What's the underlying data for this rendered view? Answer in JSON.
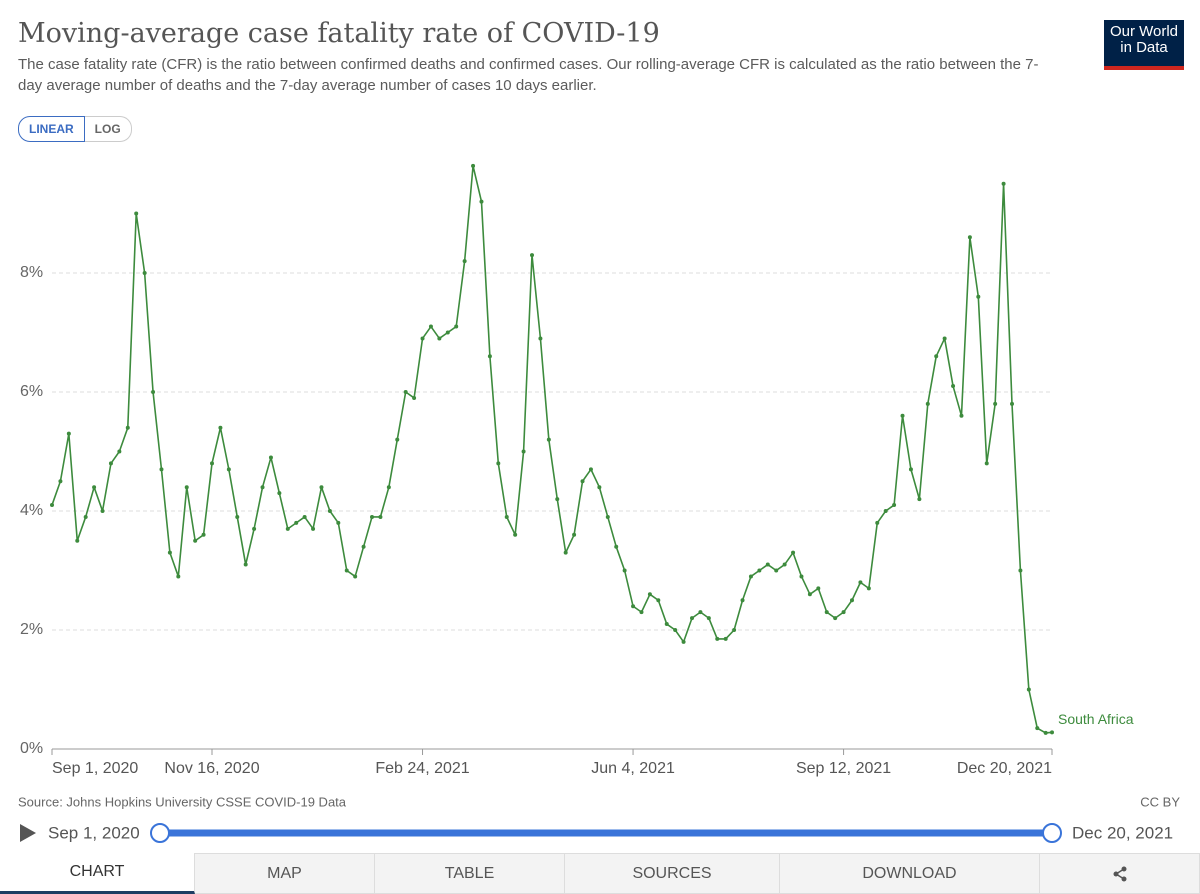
{
  "chart_data": {
    "type": "line",
    "title": "Moving-average case fatality rate of COVID-19",
    "subtitle": "The case fatality rate (CFR) is the ratio between confirmed deaths and confirmed cases. Our rolling-average CFR is calculated as the ratio between the 7-day average number of deaths and the 7-day average number of cases 10 days earlier.",
    "logo": [
      "Our World",
      "in Data"
    ],
    "scale_buttons": [
      "LINEAR",
      "LOG"
    ],
    "source": "Source: Johns Hopkins University CSSE COVID-19 Data",
    "license": "CC BY",
    "timeline": {
      "start": "Sep 1, 2020",
      "end": "Dec 20, 2021"
    },
    "tabs": [
      "CHART",
      "MAP",
      "TABLE",
      "SOURCES",
      "DOWNLOAD"
    ],
    "x": [
      "2020-09-01",
      "2020-09-05",
      "2020-09-09",
      "2020-09-13",
      "2020-09-17",
      "2020-09-21",
      "2020-09-25",
      "2020-09-29",
      "2020-10-03",
      "2020-10-07",
      "2020-10-11",
      "2020-10-15",
      "2020-10-19",
      "2020-10-23",
      "2020-10-27",
      "2020-10-31",
      "2020-11-04",
      "2020-11-08",
      "2020-11-12",
      "2020-11-16",
      "2020-11-20",
      "2020-11-24",
      "2020-11-28",
      "2020-12-02",
      "2020-12-06",
      "2020-12-10",
      "2020-12-14",
      "2020-12-18",
      "2020-12-22",
      "2020-12-26",
      "2020-12-30",
      "2021-01-03",
      "2021-01-07",
      "2021-01-11",
      "2021-01-15",
      "2021-01-19",
      "2021-01-23",
      "2021-01-27",
      "2021-01-31",
      "2021-02-04",
      "2021-02-08",
      "2021-02-12",
      "2021-02-16",
      "2021-02-20",
      "2021-02-24",
      "2021-02-28",
      "2021-03-04",
      "2021-03-08",
      "2021-03-12",
      "2021-03-16",
      "2021-03-20",
      "2021-03-24",
      "2021-03-28",
      "2021-04-01",
      "2021-04-05",
      "2021-04-09",
      "2021-04-13",
      "2021-04-17",
      "2021-04-21",
      "2021-04-25",
      "2021-04-29",
      "2021-05-03",
      "2021-05-07",
      "2021-05-11",
      "2021-05-15",
      "2021-05-19",
      "2021-05-23",
      "2021-05-27",
      "2021-05-31",
      "2021-06-04",
      "2021-06-08",
      "2021-06-12",
      "2021-06-16",
      "2021-06-20",
      "2021-06-24",
      "2021-06-28",
      "2021-07-02",
      "2021-07-06",
      "2021-07-10",
      "2021-07-14",
      "2021-07-18",
      "2021-07-22",
      "2021-07-26",
      "2021-07-30",
      "2021-08-03",
      "2021-08-07",
      "2021-08-11",
      "2021-08-15",
      "2021-08-19",
      "2021-08-23",
      "2021-08-27",
      "2021-08-31",
      "2021-09-04",
      "2021-09-08",
      "2021-09-12",
      "2021-09-16",
      "2021-09-20",
      "2021-09-24",
      "2021-09-28",
      "2021-10-02",
      "2021-10-06",
      "2021-10-10",
      "2021-10-14",
      "2021-10-18",
      "2021-10-22",
      "2021-10-26",
      "2021-10-30",
      "2021-11-03",
      "2021-11-07",
      "2021-11-11",
      "2021-11-15",
      "2021-11-19",
      "2021-11-23",
      "2021-11-27",
      "2021-12-01",
      "2021-12-05",
      "2021-12-09",
      "2021-12-13",
      "2021-12-17",
      "2021-12-20"
    ],
    "series": [
      {
        "name": "South Africa",
        "color": "#3d8b3d",
        "values": [
          4.1,
          4.5,
          5.3,
          3.5,
          3.9,
          4.4,
          4.0,
          4.8,
          5.0,
          5.4,
          9.0,
          8.0,
          6.0,
          4.7,
          3.3,
          2.9,
          4.4,
          3.5,
          3.6,
          4.8,
          5.4,
          4.7,
          3.9,
          3.1,
          3.7,
          4.4,
          4.9,
          4.3,
          3.7,
          3.8,
          3.9,
          3.7,
          4.4,
          4.0,
          3.8,
          3.0,
          2.9,
          3.4,
          3.9,
          3.9,
          4.4,
          5.2,
          6.0,
          5.9,
          6.9,
          7.1,
          6.9,
          7.0,
          7.1,
          8.2,
          9.8,
          9.2,
          6.6,
          4.8,
          3.9,
          3.6,
          5.0,
          8.3,
          6.9,
          5.2,
          4.2,
          3.3,
          3.6,
          4.5,
          4.7,
          4.4,
          3.9,
          3.4,
          3.0,
          2.4,
          2.3,
          2.6,
          2.5,
          2.1,
          2.0,
          1.8,
          2.2,
          2.3,
          2.2,
          1.85,
          1.85,
          2.0,
          2.5,
          2.9,
          3.0,
          3.1,
          3.0,
          3.1,
          3.3,
          2.9,
          2.6,
          2.7,
          2.3,
          2.2,
          2.3,
          2.5,
          2.8,
          2.7,
          3.8,
          4.0,
          4.1,
          5.6,
          4.7,
          4.2,
          5.8,
          6.6,
          6.9,
          6.1,
          5.6,
          8.6,
          7.6,
          4.8,
          5.8,
          9.5,
          5.8,
          3.0,
          1.0,
          0.35,
          0.27,
          0.28
        ]
      }
    ],
    "xlim": [
      "2020-09-01",
      "2021-12-20"
    ],
    "xticks": [
      {
        "value": "2020-09-01",
        "label": "Sep 1, 2020"
      },
      {
        "value": "2020-11-16",
        "label": "Nov 16, 2020"
      },
      {
        "value": "2021-02-24",
        "label": "Feb 24, 2021"
      },
      {
        "value": "2021-06-04",
        "label": "Jun 4, 2021"
      },
      {
        "value": "2021-09-12",
        "label": "Sep 12, 2021"
      },
      {
        "value": "2021-12-20",
        "label": "Dec 20, 2021"
      }
    ],
    "ylim": [
      0,
      10
    ],
    "yticks": [
      {
        "value": 0,
        "label": "0%"
      },
      {
        "value": 2,
        "label": "2%"
      },
      {
        "value": 4,
        "label": "4%"
      },
      {
        "value": 6,
        "label": "6%"
      },
      {
        "value": 8,
        "label": "8%"
      }
    ],
    "grid": true
  }
}
